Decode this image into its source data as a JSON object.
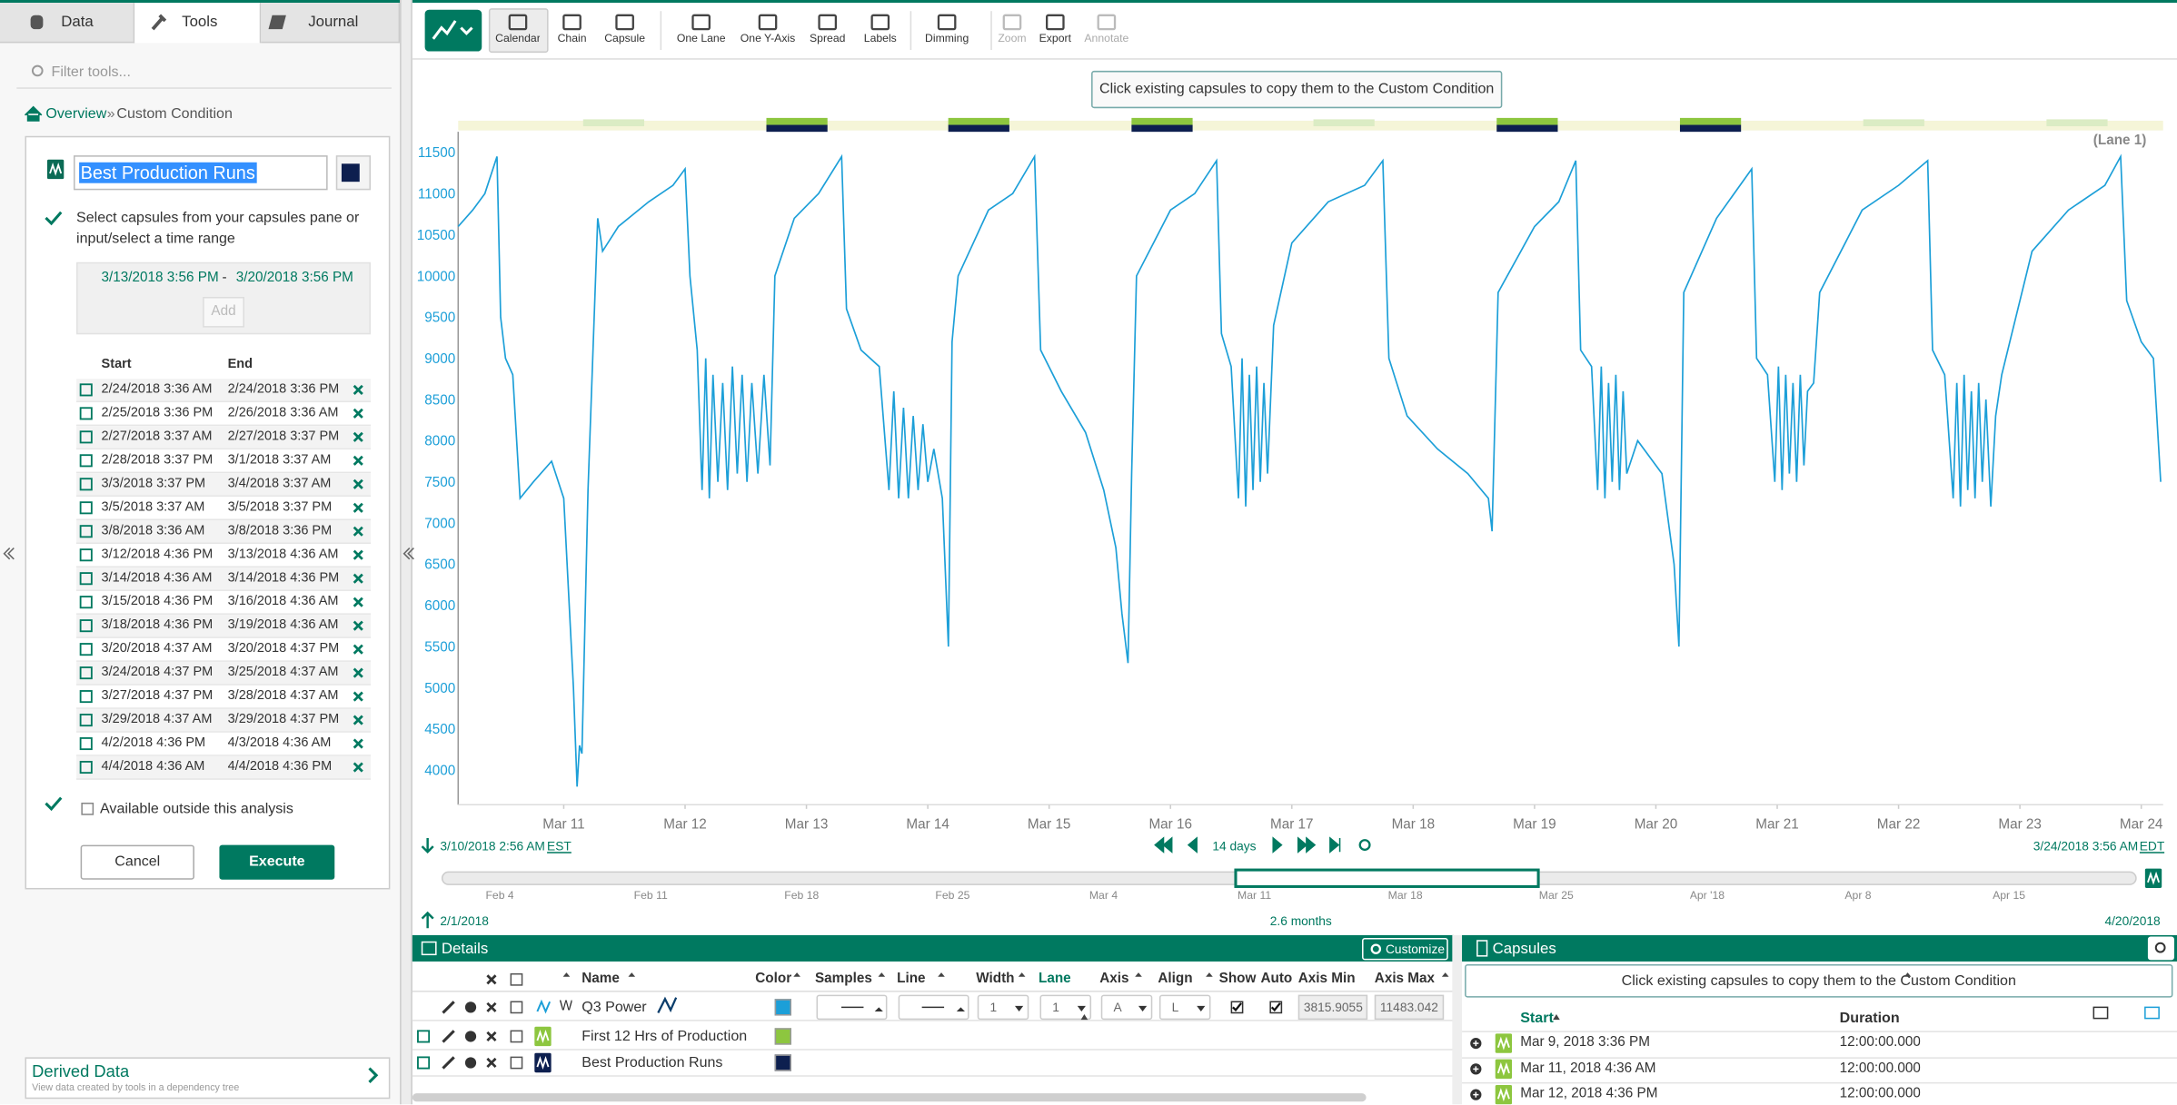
{
  "tabs": [
    "Data",
    "Tools",
    "Journal"
  ],
  "filter_placeholder": "Filter tools...",
  "breadcrumb": {
    "link": "Overview",
    "separator": "»",
    "current": "Custom Condition"
  },
  "tool": {
    "name": "Best Production Runs",
    "instruction": "Select capsules from your capsules pane or input/select a time range",
    "range_start": "3/13/2018 3:56 PM",
    "range_separator": "-",
    "range_end": "3/20/2018 3:56 PM",
    "add": "Add",
    "columns": [
      "Start",
      "End"
    ],
    "rows": [
      [
        "2/24/2018 3:36 AM",
        "2/24/2018 3:36 PM"
      ],
      [
        "2/25/2018 3:36 PM",
        "2/26/2018 3:36 AM"
      ],
      [
        "2/27/2018 3:37 AM",
        "2/27/2018 3:37 PM"
      ],
      [
        "2/28/2018 3:37 PM",
        "3/1/2018 3:37 AM"
      ],
      [
        "3/3/2018 3:37 PM",
        "3/4/2018 3:37 AM"
      ],
      [
        "3/5/2018 3:37 AM",
        "3/5/2018 3:37 PM"
      ],
      [
        "3/8/2018 3:36 AM",
        "3/8/2018 3:36 PM"
      ],
      [
        "3/12/2018 4:36 PM",
        "3/13/2018 4:36 AM"
      ],
      [
        "3/14/2018 4:36 AM",
        "3/14/2018 4:36 PM"
      ],
      [
        "3/15/2018 4:36 PM",
        "3/16/2018 4:36 AM"
      ],
      [
        "3/18/2018 4:36 PM",
        "3/19/2018 4:36 AM"
      ],
      [
        "3/20/2018 4:37 AM",
        "3/20/2018 4:37 PM"
      ],
      [
        "3/24/2018 4:37 PM",
        "3/25/2018 4:37 AM"
      ],
      [
        "3/27/2018 4:37 PM",
        "3/28/2018 4:37 AM"
      ],
      [
        "3/29/2018 4:37 AM",
        "3/29/2018 4:37 PM"
      ],
      [
        "4/2/2018 4:36 PM",
        "4/3/2018 4:36 AM"
      ],
      [
        "4/4/2018 4:36 AM",
        "4/4/2018 4:36 PM"
      ]
    ],
    "available": "Available outside this analysis",
    "cancel": "Cancel",
    "execute": "Execute"
  },
  "derived": {
    "title": "Derived Data",
    "subtitle": "View data created by tools in a dependency tree"
  },
  "toolbar": [
    "Calendar",
    "Chain",
    "Capsule",
    "One Lane",
    "One Y-Axis",
    "Spread",
    "Labels",
    "Dimming",
    "Zoom",
    "Export",
    "Annotate"
  ],
  "banner": "Click existing capsules to copy them to the Custom Condition",
  "chart_data": {
    "type": "line",
    "lane_label": "(Lane 1)",
    "grid": false,
    "x": [
      10.13,
      10.25,
      10.35,
      10.45,
      10.48,
      10.52,
      10.58,
      10.64,
      10.75,
      10.9,
      11.0,
      11.08,
      11.11,
      11.13,
      11.15,
      11.2,
      11.28,
      11.32,
      11.45,
      11.7,
      11.9,
      12.0,
      12.04,
      12.1,
      12.14,
      12.17,
      12.2,
      12.23,
      12.27,
      12.31,
      12.35,
      12.39,
      12.43,
      12.47,
      12.51,
      12.55,
      12.6,
      12.65,
      12.7,
      12.74,
      12.9,
      13.1,
      13.29,
      13.33,
      13.45,
      13.6,
      13.68,
      13.72,
      13.76,
      13.8,
      13.84,
      13.88,
      13.92,
      13.96,
      14.0,
      14.05,
      14.12,
      14.17,
      14.2,
      14.25,
      14.5,
      14.7,
      14.88,
      14.93,
      15.1,
      15.3,
      15.45,
      15.55,
      15.6,
      15.65,
      15.68,
      15.72,
      16.0,
      16.2,
      16.38,
      16.42,
      16.5,
      16.56,
      16.59,
      16.62,
      16.65,
      16.68,
      16.71,
      16.74,
      16.77,
      16.8,
      16.85,
      17.0,
      17.3,
      17.6,
      17.75,
      17.8,
      17.95,
      18.2,
      18.45,
      18.62,
      18.65,
      18.7,
      19.0,
      19.2,
      19.34,
      19.38,
      19.47,
      19.52,
      19.55,
      19.58,
      19.61,
      19.64,
      19.67,
      19.7,
      19.73,
      19.76,
      19.85,
      20.05,
      20.15,
      20.19,
      20.23,
      20.5,
      20.79,
      20.83,
      20.92,
      20.98,
      21.01,
      21.04,
      21.07,
      21.1,
      21.13,
      21.16,
      21.19,
      21.22,
      21.25,
      21.3,
      21.35,
      21.7,
      22.0,
      22.24,
      22.28,
      22.38,
      22.45,
      22.48,
      22.51,
      22.54,
      22.57,
      22.6,
      22.63,
      22.66,
      22.69,
      22.72,
      22.76,
      22.8,
      22.85,
      23.1,
      23.4,
      23.7,
      23.83,
      23.88,
      24.0,
      24.1,
      24.16
    ],
    "series": [
      {
        "name": "Q3 Power",
        "color": "#1c9fd8",
        "values": [
          10600,
          10800,
          11000,
          11450,
          9500,
          9000,
          8800,
          7300,
          7500,
          7750,
          7300,
          5000,
          3800,
          4300,
          4200,
          7400,
          10700,
          10300,
          10600,
          10900,
          11100,
          11300,
          10000,
          9100,
          7400,
          9000,
          7300,
          8800,
          7500,
          8700,
          7400,
          8900,
          7600,
          8800,
          7500,
          8700,
          7600,
          8800,
          7700,
          10000,
          10700,
          11000,
          11450,
          9600,
          9100,
          8900,
          7400,
          8600,
          7300,
          8400,
          7300,
          8300,
          7400,
          8200,
          7500,
          7900,
          7300,
          5500,
          9200,
          10000,
          10800,
          11000,
          11450,
          9100,
          8600,
          8100,
          7400,
          6700,
          5900,
          5300,
          7600,
          10000,
          10800,
          11000,
          11400,
          9300,
          8900,
          7300,
          9000,
          7200,
          8800,
          7400,
          8900,
          7500,
          8700,
          7600,
          9400,
          10400,
          10900,
          11100,
          11400,
          9000,
          8300,
          7900,
          7600,
          7300,
          6900,
          9800,
          10600,
          10900,
          11400,
          9100,
          8900,
          7400,
          8900,
          7300,
          8700,
          7500,
          8800,
          7400,
          8600,
          7600,
          8000,
          7600,
          6500,
          5500,
          9800,
          10700,
          11300,
          9000,
          8800,
          7500,
          8900,
          7400,
          8800,
          7600,
          8700,
          7500,
          8800,
          7700,
          8600,
          8700,
          9800,
          10800,
          11100,
          11400,
          9100,
          8800,
          7300,
          8700,
          7200,
          8800,
          7400,
          8600,
          7300,
          8700,
          7500,
          8500,
          7200,
          8300,
          8800,
          10300,
          10800,
          11100,
          11450,
          9700,
          9200,
          9000,
          7500
        ]
      }
    ],
    "xlim": [
      10.13,
      24.18
    ],
    "ylim": [
      3580,
      11750
    ],
    "xticks": [
      {
        "value": 11,
        "label": "Mar 11"
      },
      {
        "value": 12,
        "label": "Mar 12"
      },
      {
        "value": 13,
        "label": "Mar 13"
      },
      {
        "value": 14,
        "label": "Mar 14"
      },
      {
        "value": 15,
        "label": "Mar 15"
      },
      {
        "value": 16,
        "label": "Mar 16"
      },
      {
        "value": 17,
        "label": "Mar 17"
      },
      {
        "value": 18,
        "label": "Mar 18"
      },
      {
        "value": 19,
        "label": "Mar 19"
      },
      {
        "value": 20,
        "label": "Mar 20"
      },
      {
        "value": 21,
        "label": "Mar 21"
      },
      {
        "value": 22,
        "label": "Mar 22"
      },
      {
        "value": 23,
        "label": "Mar 23"
      },
      {
        "value": 24,
        "label": "Mar 24"
      }
    ],
    "yticks": [
      4000,
      4500,
      5000,
      5500,
      6000,
      6500,
      7000,
      7500,
      8000,
      8500,
      9000,
      9500,
      10000,
      10500,
      11000,
      11500
    ]
  },
  "time_bar": {
    "start": "3/10/2018 2:56 AM",
    "start_zone": "EST",
    "duration": "14 days",
    "end": "3/24/2018 3:56 AM",
    "end_zone": "EDT"
  },
  "overview": {
    "ticks": [
      "Feb 4",
      "Feb 11",
      "Feb 18",
      "Feb 25",
      "Mar 4",
      "Mar 11",
      "Mar 18",
      "Mar 25",
      "Apr '18",
      "Apr 8",
      "Apr 15"
    ],
    "start": "2/1/2018",
    "duration": "2.6 months",
    "end": "4/20/2018"
  },
  "details": {
    "title": "Details",
    "customize": "Customize",
    "columns": [
      "Name",
      "Color",
      "Samples",
      "Line",
      "Width",
      "Lane",
      "Axis",
      "Align",
      "Show",
      "Auto",
      "Axis Min",
      "Axis Max"
    ],
    "rows": [
      {
        "prefix": "W",
        "name": "Q3 Power",
        "width": "1",
        "lane": "1",
        "axis": "A",
        "align": "L",
        "axis_min": "3815.9055",
        "axis_max": "11483.042"
      },
      {
        "name": "First 12 Hrs of Production"
      },
      {
        "name": "Best Production Runs"
      }
    ]
  },
  "capsules": {
    "title": "Capsules",
    "banner": "Click existing capsules to copy them to the Custom Condition",
    "columns": [
      "Start",
      "Duration"
    ],
    "rows": [
      [
        "Mar 9, 2018 3:36 PM",
        "12:00:00.000"
      ],
      [
        "Mar 11, 2018 4:36 AM",
        "12:00:00.000"
      ],
      [
        "Mar 12, 2018 4:36 PM",
        "12:00:00.000"
      ]
    ]
  }
}
